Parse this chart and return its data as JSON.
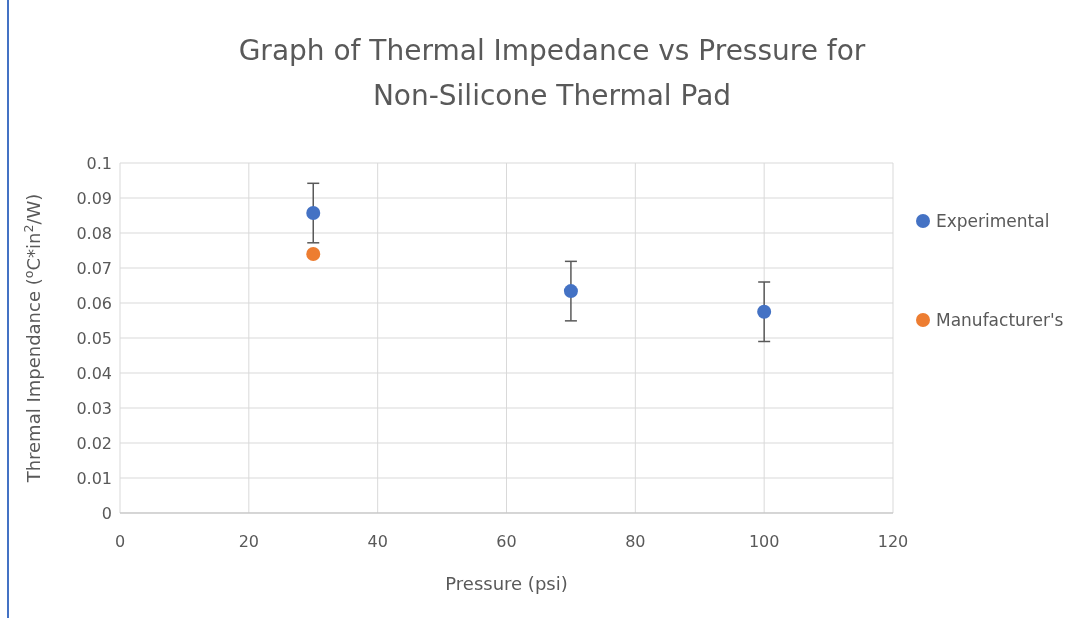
{
  "chart_data": {
    "type": "scatter",
    "title": "Graph of Thermal Impedance vs Pressure for Non-Silicone Thermal Pad",
    "xlabel": "Pressure (psi)",
    "ylabel": "Thremal Impendance ($^{o}$C*in$^{2}$/W)",
    "series": [
      {
        "name": "Experimental",
        "color": "#4472c4",
        "x": [
          30,
          70,
          100
        ],
        "values": [
          0.0857,
          0.0634,
          0.0575
        ],
        "errors": [
          0.0085,
          0.0085,
          0.0085
        ]
      },
      {
        "name": "Manufacturer's",
        "color": "#ed7d31",
        "x": [
          30
        ],
        "values": [
          0.074
        ]
      }
    ],
    "xlim": [
      0,
      120
    ],
    "xticks": [
      0,
      20,
      40,
      60,
      80,
      100,
      120
    ],
    "ylim": [
      0,
      0.1
    ],
    "yticks": [
      0,
      0.01,
      0.02,
      0.03,
      0.04,
      0.05,
      0.06,
      0.07,
      0.08,
      0.09,
      0.1
    ],
    "grid": true,
    "legend": "right",
    "marker": "circle"
  }
}
